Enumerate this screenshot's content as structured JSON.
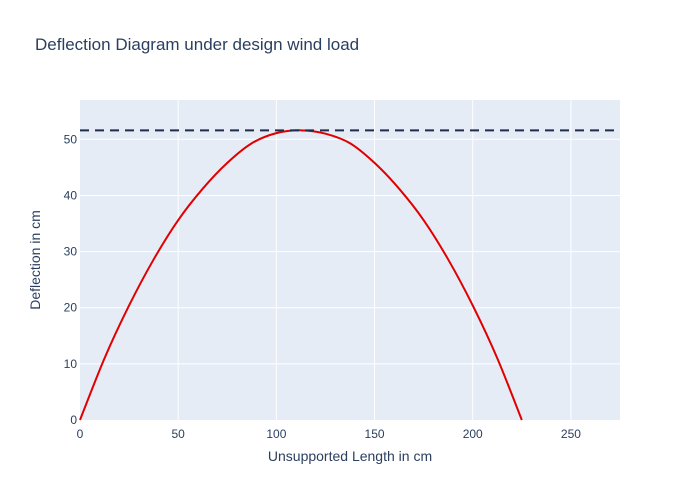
{
  "chart_data": {
    "type": "line",
    "title": "Deflection Diagram under design wind load",
    "xlabel": "Unsupported Length in cm",
    "ylabel": "Deflection in cm",
    "xlim": [
      0,
      275
    ],
    "ylim": [
      0,
      57
    ],
    "x_ticks": [
      0,
      50,
      100,
      150,
      200,
      250
    ],
    "y_ticks": [
      0,
      10,
      20,
      30,
      40,
      50
    ],
    "grid": true,
    "legend": "none",
    "colors": {
      "plot_bg": "#e5ecf6",
      "grid": "#ffffff",
      "curve": "#e00000",
      "reference": "#1f2d4f",
      "text": "#2a3f5f"
    },
    "series": [
      {
        "style": "solid",
        "x": [
          0,
          12.5,
          25,
          37.5,
          50,
          62.5,
          75,
          87.5,
          100,
          112.5,
          125,
          137.5,
          150,
          162.5,
          175,
          187.5,
          200,
          212.5,
          225
        ],
        "y": [
          0,
          11.0,
          20.4,
          28.6,
          35.6,
          41.2,
          45.8,
          49.3,
          51.1,
          51.6,
          51.0,
          49.3,
          45.8,
          41.2,
          35.6,
          28.6,
          20.4,
          11.0,
          0
        ]
      },
      {
        "style": "dashed",
        "x": [
          0,
          275
        ],
        "y": [
          51.6,
          51.6
        ]
      }
    ]
  }
}
